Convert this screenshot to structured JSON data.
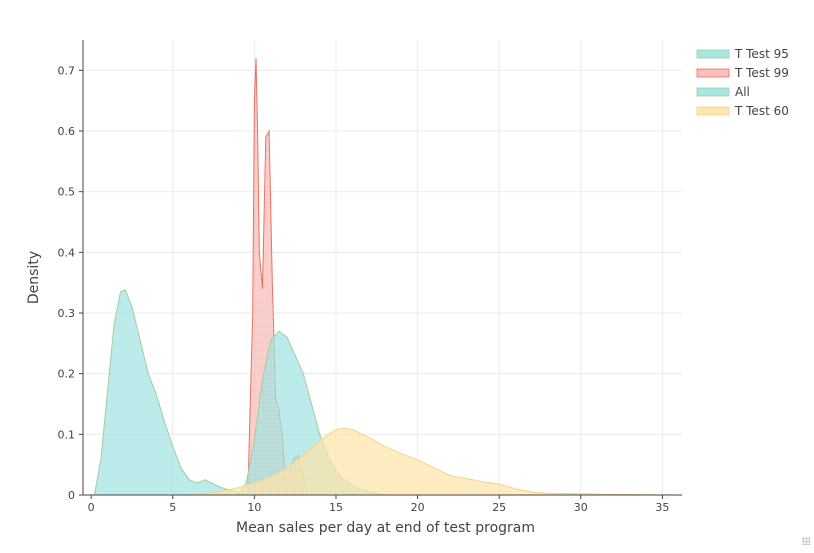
{
  "chart_data": {
    "type": "area",
    "title": "",
    "xlabel": "Mean sales per day at end of test program",
    "ylabel": "Density",
    "xlim": [
      -0.5,
      36.2
    ],
    "ylim": [
      0,
      0.75
    ],
    "xticks": [
      0,
      5,
      10,
      15,
      20,
      25,
      30,
      35
    ],
    "yticks": [
      0,
      0.1,
      0.2,
      0.3,
      0.4,
      0.5,
      0.6,
      0.7
    ],
    "grid": true,
    "legend_position": "top-right",
    "series": [
      {
        "name": "T Test 95",
        "fill": "#9fe2e0",
        "line": "#9fcf9a",
        "x": [
          0.2,
          0.6,
          1.0,
          1.4,
          1.8,
          2.1,
          2.5,
          3.0,
          3.5,
          4.0,
          4.5,
          5.0,
          5.5,
          6.0,
          6.5,
          7.0,
          7.5,
          8.0,
          8.5,
          9.0,
          9.5,
          10.0
        ],
        "y": [
          0.0,
          0.06,
          0.17,
          0.28,
          0.335,
          0.338,
          0.31,
          0.255,
          0.2,
          0.165,
          0.12,
          0.08,
          0.045,
          0.025,
          0.02,
          0.025,
          0.018,
          0.012,
          0.008,
          0.005,
          0.003,
          0.0
        ]
      },
      {
        "name": "T Test 99",
        "fill": "#f7b8b6",
        "line": "#e8715d",
        "x": [
          9.6,
          9.9,
          10.0,
          10.1,
          10.2,
          10.3,
          10.5,
          10.7,
          10.9,
          11.1,
          11.3,
          11.5,
          11.7,
          11.9,
          12.1,
          12.4,
          12.7,
          13.0,
          13.3
        ],
        "y": [
          0.0,
          0.3,
          0.65,
          0.72,
          0.6,
          0.4,
          0.34,
          0.59,
          0.6,
          0.35,
          0.16,
          0.14,
          0.1,
          0.03,
          0.03,
          0.06,
          0.065,
          0.03,
          0.0
        ]
      },
      {
        "name": "All",
        "fill": "#9fe2e0",
        "line": "#9fcf9a",
        "x": [
          9.0,
          9.5,
          10.0,
          10.5,
          11.0,
          11.5,
          12.0,
          12.5,
          13.0,
          13.5,
          14.0,
          14.5,
          15.0,
          15.5,
          16.0,
          16.5,
          17.0,
          17.5,
          18.0
        ],
        "y": [
          0.0,
          0.02,
          0.09,
          0.19,
          0.255,
          0.27,
          0.26,
          0.23,
          0.2,
          0.15,
          0.1,
          0.065,
          0.04,
          0.025,
          0.016,
          0.01,
          0.006,
          0.003,
          0.0
        ]
      },
      {
        "name": "T Test 60",
        "fill": "#fde3a6",
        "line": "#f6d28d",
        "x": [
          6.0,
          7.0,
          8.0,
          9.0,
          10.0,
          11.0,
          12.0,
          13.0,
          14.0,
          15.0,
          15.5,
          16.0,
          17.0,
          18.0,
          19.0,
          20.0,
          21.0,
          22.0,
          23.0,
          24.0,
          25.0,
          26.0,
          27.0,
          28.0,
          30.0,
          32.0,
          34.0,
          36.0
        ],
        "y": [
          0.0,
          0.002,
          0.006,
          0.012,
          0.02,
          0.03,
          0.045,
          0.065,
          0.09,
          0.108,
          0.11,
          0.108,
          0.095,
          0.08,
          0.068,
          0.058,
          0.045,
          0.032,
          0.027,
          0.022,
          0.018,
          0.01,
          0.005,
          0.003,
          0.002,
          0.001,
          0.0005,
          0.0
        ]
      }
    ]
  }
}
